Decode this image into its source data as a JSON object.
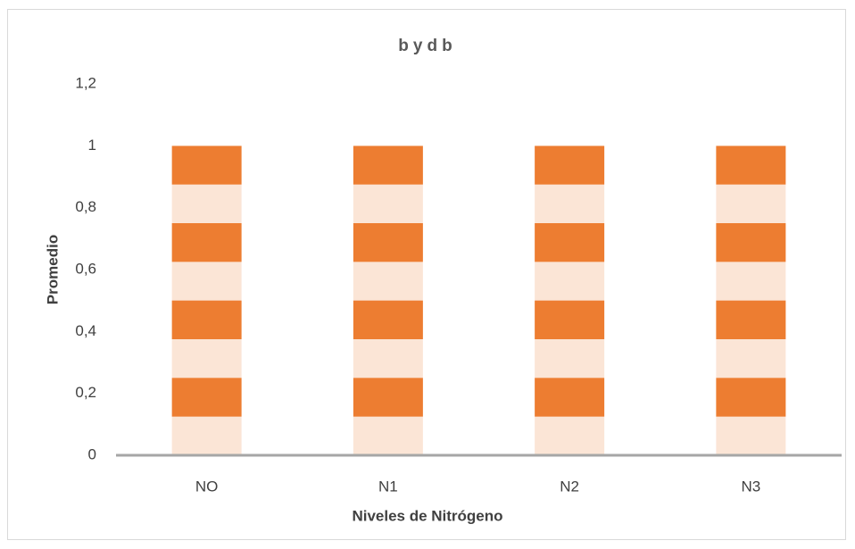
{
  "chart_data": {
    "type": "bar",
    "title": "bydb",
    "x_label": "Niveles de Nitrógeno",
    "y_label": "Promedio",
    "categories": [
      "NO",
      "N1",
      "N2",
      "N3"
    ],
    "values": [
      1,
      1,
      1,
      1
    ],
    "color": "#ed7d31",
    "pattern_color": "#fbe5d6",
    "pattern": "horizontal-stripes",
    "ylim": [
      0,
      1.2
    ],
    "yticks": [
      0,
      {
        "value": 0.2,
        "label": "0,2"
      },
      {
        "value": 0.4,
        "label": "0,4"
      },
      {
        "value": 0.6,
        "label": "0,6"
      },
      {
        "value": 0.8,
        "label": "0,8"
      },
      1,
      {
        "value": 1.2,
        "label": "1,2"
      }
    ],
    "grid": false
  }
}
